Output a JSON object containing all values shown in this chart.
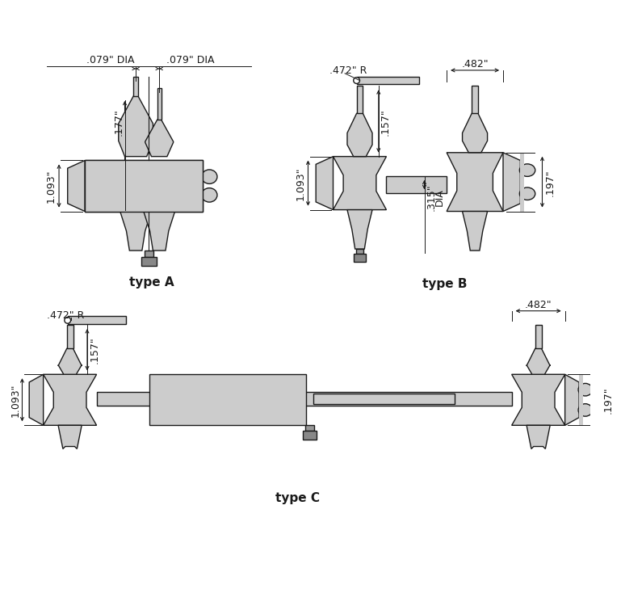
{
  "bg_color": "#ffffff",
  "lc": "#1a1a1a",
  "fc": "#cccccc",
  "fc2": "#bbbbbb",
  "lw": 1.0,
  "title_A": "type A",
  "title_B": "type B",
  "title_C": "type C",
  "dim_079L": ".079\" DIA",
  "dim_079R": ".079\" DIA",
  "dim_177": ".177\"",
  "dim_1093A": "1.093\"",
  "dim_472B": ".472\" R",
  "dim_157B": ".157\"",
  "dim_1093B": "1.093\"",
  "dim_482B": ".482\"",
  "dim_197B": ".197\"",
  "dim_315": ".315\"",
  "dim_DIA": "DIA",
  "dim_472C": ".472\" R",
  "dim_157C": ".157\"",
  "dim_1093C": "1.093\"",
  "dim_482C": ".482\"",
  "dim_197C": ".197\""
}
